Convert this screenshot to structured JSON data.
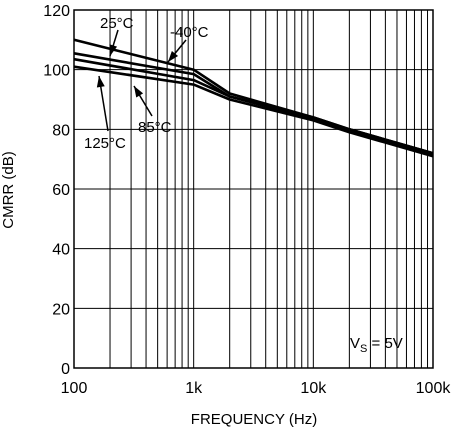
{
  "chart_data": {
    "type": "line",
    "xlabel": "FREQUENCY (Hz)",
    "ylabel": "CMRR (dB)",
    "x_scale": "log",
    "xlim": [
      100,
      100000
    ],
    "ylim": [
      0,
      120
    ],
    "grid": true,
    "x_ticks": [
      {
        "value": 100,
        "label": "100"
      },
      {
        "value": 1000,
        "label": "1k"
      },
      {
        "value": 10000,
        "label": "10k"
      },
      {
        "value": 100000,
        "label": "100k"
      }
    ],
    "y_ticks": [
      {
        "value": 0,
        "label": "0"
      },
      {
        "value": 20,
        "label": "20"
      },
      {
        "value": 40,
        "label": "40"
      },
      {
        "value": 60,
        "label": "60"
      },
      {
        "value": 80,
        "label": "80"
      },
      {
        "value": 100,
        "label": "100"
      },
      {
        "value": 120,
        "label": "120"
      }
    ],
    "series": [
      {
        "name": "25°C",
        "points": [
          [
            100,
            110
          ],
          [
            1000,
            100
          ],
          [
            2000,
            92
          ],
          [
            10000,
            84
          ],
          [
            20000,
            80
          ],
          [
            100000,
            72
          ]
        ]
      },
      {
        "name": "-40°C",
        "points": [
          [
            100,
            105.5
          ],
          [
            1000,
            98.5
          ],
          [
            2000,
            91
          ],
          [
            10000,
            84
          ],
          [
            20000,
            80
          ],
          [
            100000,
            72
          ]
        ]
      },
      {
        "name": "85°C",
        "points": [
          [
            100,
            103.5
          ],
          [
            1000,
            96.5
          ],
          [
            2000,
            91
          ],
          [
            10000,
            83.5
          ],
          [
            20000,
            79.5
          ],
          [
            100000,
            71.5
          ]
        ]
      },
      {
        "name": "125°C",
        "points": [
          [
            100,
            101
          ],
          [
            1000,
            95
          ],
          [
            2000,
            90
          ],
          [
            10000,
            83
          ],
          [
            20000,
            79
          ],
          [
            100000,
            71
          ]
        ]
      }
    ],
    "annotations": [
      {
        "text_main": "V",
        "text_sub": "S",
        "text_rest": " = 5V"
      }
    ]
  }
}
